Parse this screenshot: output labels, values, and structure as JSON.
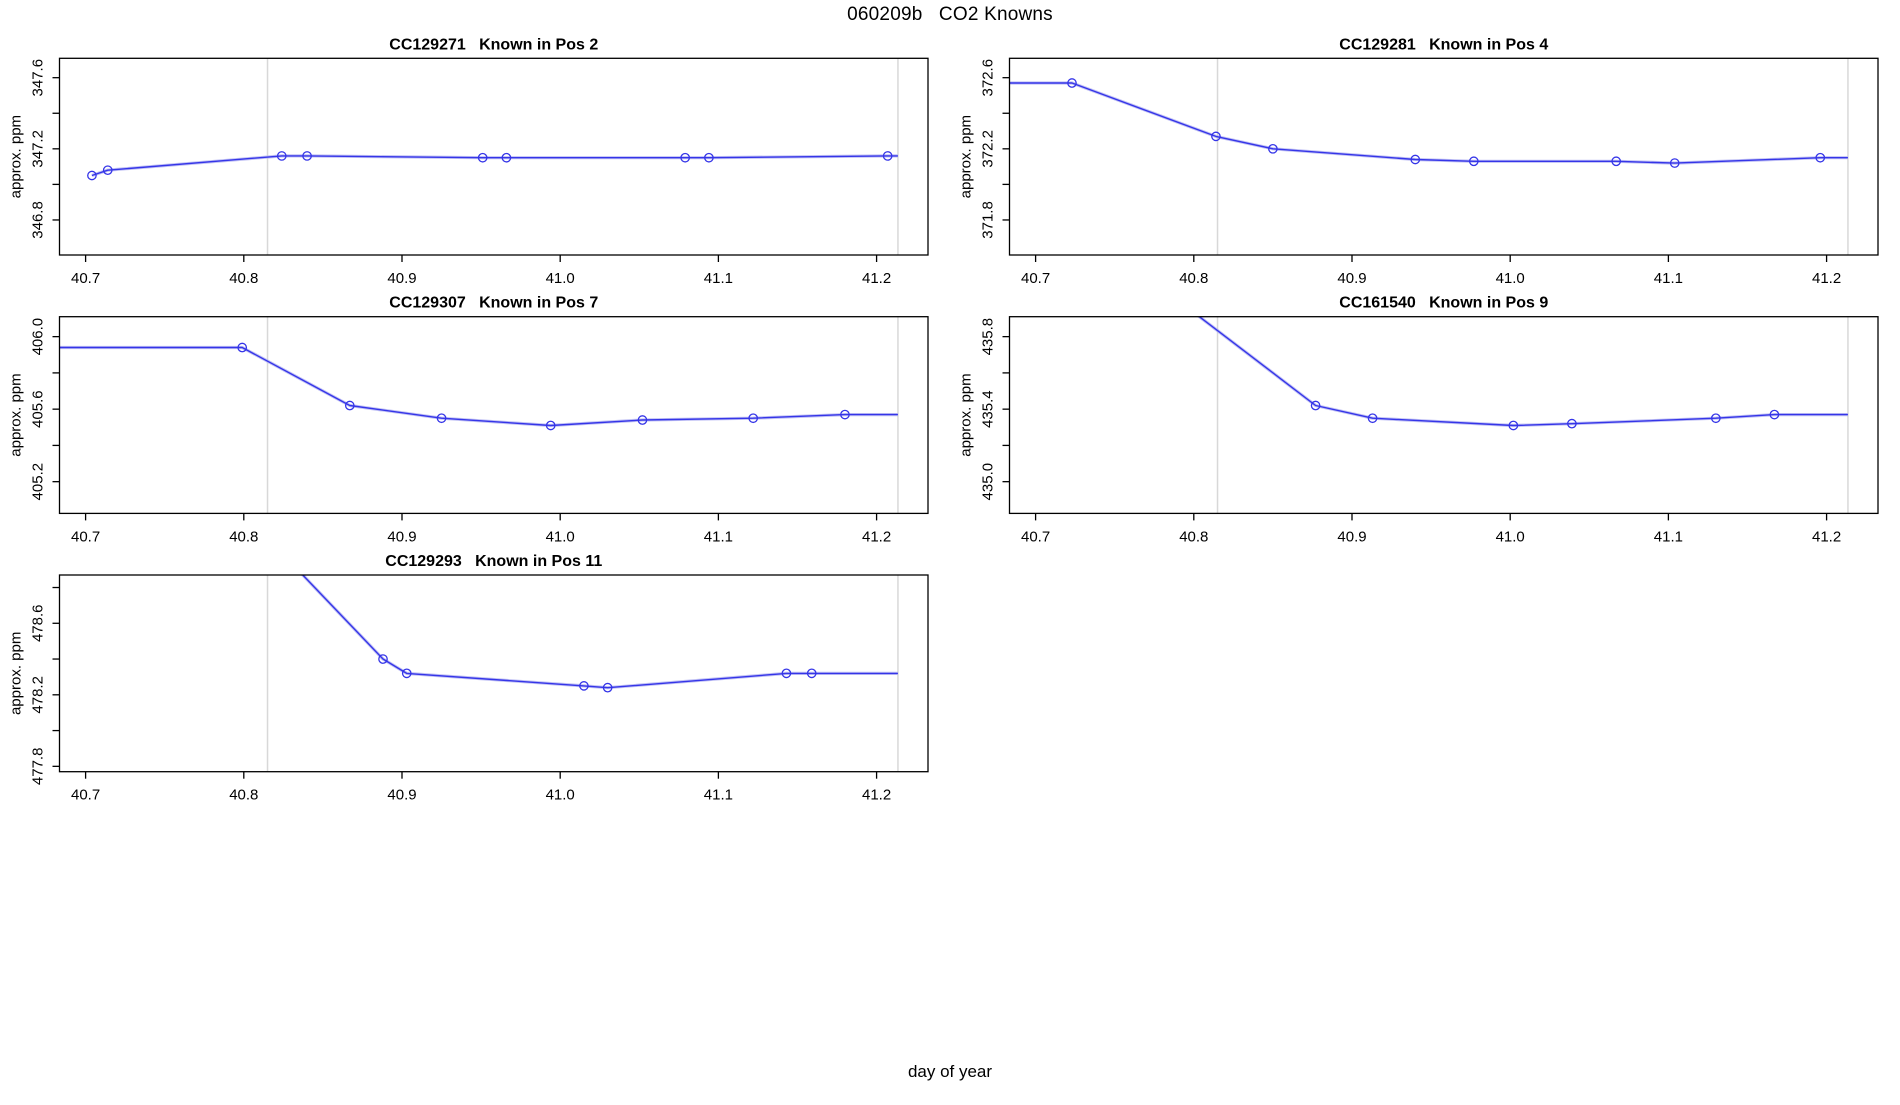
{
  "figure": {
    "title": "060209b   CO2 Knowns",
    "x_axis_label": "day of year",
    "colors": {
      "line": "#3535e8",
      "halo": "#b6b6f2",
      "run_boundary_line": "#d8d8d8",
      "axis": "#000000"
    },
    "xlim": [
      40.6835,
      41.2325
    ],
    "x_ticks": {
      "values": [
        40.7,
        40.8,
        40.9,
        41.0,
        41.1,
        41.2
      ],
      "labels": [
        "40.7",
        "40.8",
        "40.9",
        "41.0",
        "41.1",
        "41.2"
      ]
    },
    "run_boundaries": [
      40.815,
      41.2135
    ]
  },
  "chart_data": [
    {
      "type": "line",
      "title": "CC129271   Known in Pos 2",
      "code": "CC129271",
      "position_label": "Known in Pos 2",
      "ylabel": "approx. ppm",
      "grid": {
        "row": 0,
        "col": 0
      },
      "ylim": [
        346.603,
        347.709
      ],
      "yticks": [
        {
          "v": 346.8,
          "label": "346.8"
        },
        {
          "v": 347.0
        },
        {
          "v": 347.2,
          "label": "347.2"
        },
        {
          "v": 347.4
        },
        {
          "v": 347.6,
          "label": "347.6"
        }
      ],
      "x": [
        40.704,
        40.714,
        40.824,
        40.84,
        40.951,
        40.966,
        41.079,
        41.094,
        41.207
      ],
      "y": [
        347.05,
        347.08,
        347.16,
        347.16,
        347.15,
        347.15,
        347.15,
        347.15,
        347.16
      ],
      "line_pre": [],
      "line_post": [
        [
          41.2135,
          347.16
        ]
      ]
    },
    {
      "type": "line",
      "title": "CC129281   Known in Pos 4",
      "code": "CC129281",
      "position_label": "Known in Pos 4",
      "ylabel": "approx. ppm",
      "grid": {
        "row": 0,
        "col": 1
      },
      "ylim": [
        371.603,
        372.709
      ],
      "yticks": [
        {
          "v": 371.8,
          "label": "371.8"
        },
        {
          "v": 372.0
        },
        {
          "v": 372.2,
          "label": "372.2"
        },
        {
          "v": 372.4
        },
        {
          "v": 372.6,
          "label": "372.6"
        }
      ],
      "x": [
        40.723,
        40.814,
        40.85,
        40.94,
        40.977,
        41.067,
        41.104,
        41.196
      ],
      "y": [
        372.57,
        372.27,
        372.2,
        372.14,
        372.13,
        372.13,
        372.12,
        372.15
      ],
      "line_pre": [
        [
          40.6835,
          372.57
        ]
      ],
      "line_post": [
        [
          41.2135,
          372.15
        ]
      ]
    },
    {
      "type": "line",
      "title": "CC129307   Known in Pos 7",
      "code": "CC129307",
      "position_label": "Known in Pos 7",
      "ylabel": "approx. ppm",
      "grid": {
        "row": 1,
        "col": 0
      },
      "ylim": [
        405.025,
        406.11
      ],
      "yticks": [
        {
          "v": 405.2,
          "label": "405.2"
        },
        {
          "v": 405.4
        },
        {
          "v": 405.6,
          "label": "405.6"
        },
        {
          "v": 405.8
        },
        {
          "v": 406.0,
          "label": "406.0"
        }
      ],
      "x": [
        40.799,
        40.867,
        40.925,
        40.994,
        41.052,
        41.122,
        41.18
      ],
      "y": [
        405.94,
        405.62,
        405.55,
        405.51,
        405.54,
        405.55,
        405.57
      ],
      "line_pre": [
        [
          40.6835,
          405.94
        ]
      ],
      "line_post": [
        [
          41.2135,
          405.57
        ]
      ]
    },
    {
      "type": "line",
      "title": "CC161540   Known in Pos 9",
      "code": "CC161540",
      "position_label": "Known in Pos 9",
      "ylabel": "approx. ppm",
      "grid": {
        "row": 1,
        "col": 1
      },
      "ylim": [
        434.825,
        435.91
      ],
      "yticks": [
        {
          "v": 435.0,
          "label": "435.0"
        },
        {
          "v": 435.2
        },
        {
          "v": 435.4,
          "label": "435.4"
        },
        {
          "v": 435.6
        },
        {
          "v": 435.8,
          "label": "435.8"
        }
      ],
      "x": [
        40.877,
        40.913,
        41.002,
        41.039,
        41.13,
        41.167
      ],
      "y": [
        435.42,
        435.35,
        435.31,
        435.32,
        435.35,
        435.37
      ],
      "line_pre": [
        [
          40.73,
          436.4
        ]
      ],
      "line_post": [
        [
          41.2135,
          435.37
        ]
      ]
    },
    {
      "type": "line",
      "title": "CC129293   Known in Pos 11",
      "code": "CC129293",
      "position_label": "Known in Pos 11",
      "ylabel": "approx. ppm",
      "grid": {
        "row": 2,
        "col": 0
      },
      "ylim": [
        477.77,
        478.87
      ],
      "yticks": [
        {
          "v": 477.8,
          "label": "477.8"
        },
        {
          "v": 478.0
        },
        {
          "v": 478.2,
          "label": "478.2"
        },
        {
          "v": 478.4
        },
        {
          "v": 478.6,
          "label": "478.6"
        },
        {
          "v": 478.8
        }
      ],
      "x": [
        40.888,
        40.903,
        41.015,
        41.03,
        41.143,
        41.159
      ],
      "y": [
        478.4,
        478.32,
        478.25,
        478.24,
        478.32,
        478.32
      ],
      "line_pre": [
        [
          40.78,
          479.4
        ]
      ],
      "line_post": [
        [
          41.2135,
          478.32
        ]
      ]
    }
  ]
}
